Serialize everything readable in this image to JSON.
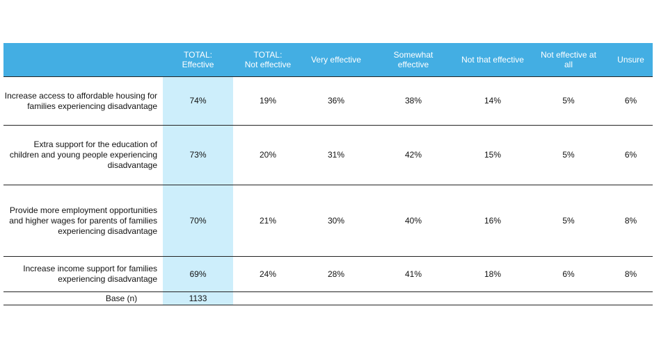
{
  "header": {
    "columns": [
      "",
      "TOTAL:\nEffective",
      "TOTAL:\nNot effective",
      "Very effective",
      "Somewhat\neffective",
      "Not that effective",
      "Not effective at\nall",
      "Unsure"
    ]
  },
  "rows": [
    {
      "label": "Increase access to affordable housing for families experiencing disadvantage",
      "values": [
        "74%",
        "19%",
        "36%",
        "38%",
        "14%",
        "5%",
        "6%"
      ]
    },
    {
      "label": "Extra support for the education of children and young people experiencing disadvantage",
      "values": [
        "73%",
        "20%",
        "31%",
        "42%",
        "15%",
        "5%",
        "6%"
      ]
    },
    {
      "label": "Provide more employment opportunities and higher wages for parents of families experiencing disadvantage",
      "values": [
        "70%",
        "21%",
        "30%",
        "40%",
        "16%",
        "5%",
        "8%"
      ]
    },
    {
      "label": "Increase income support for families experiencing disadvantage",
      "values": [
        "69%",
        "24%",
        "28%",
        "41%",
        "18%",
        "6%",
        "8%"
      ]
    }
  ],
  "base": {
    "label": "Base (n)",
    "value": "1133"
  },
  "colors": {
    "header_bg": "#43aee3",
    "highlight_col": "#cdeefb"
  }
}
